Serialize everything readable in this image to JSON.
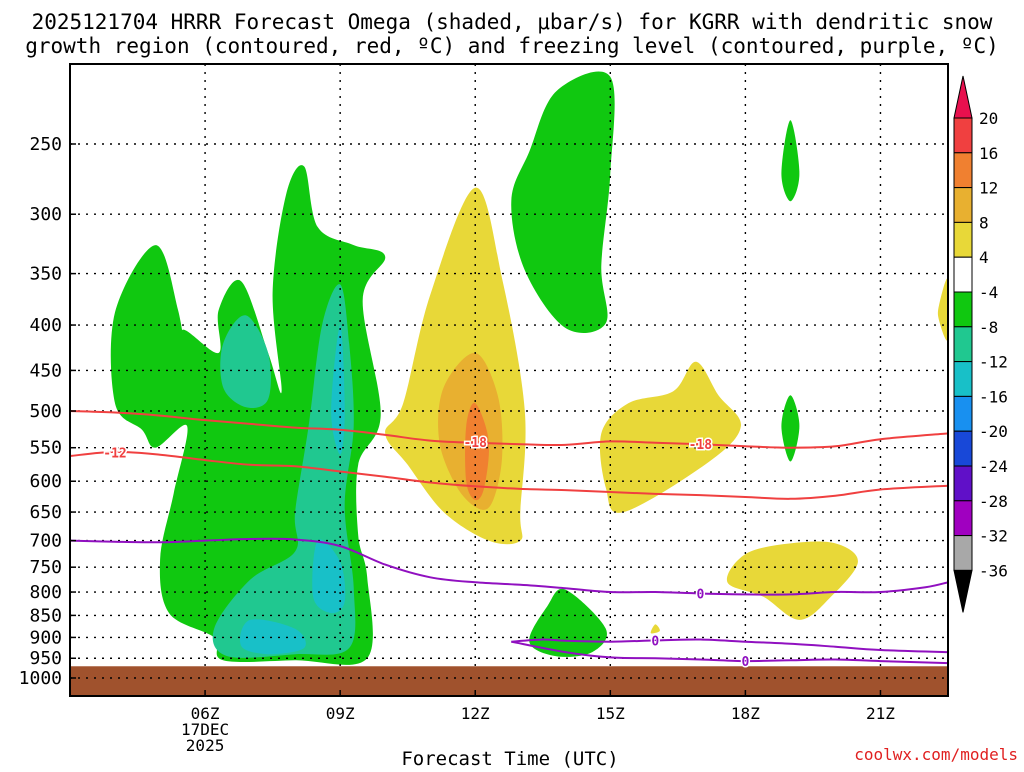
{
  "chart_data": {
    "type": "area",
    "title_line1": "2025121704 HRRR Forecast Omega (shaded, μbar/s) for KGRR with dendritic snow",
    "title_line2": "growth region (contoured, red, ºC) and freezing level (contoured, purple, ºC)",
    "xlabel": "Forecast Time (UTC)",
    "credit": "coolwx.com/models",
    "x_domain": [
      3.0,
      22.5
    ],
    "x_ticks": [
      {
        "hour": 6,
        "label": "06Z",
        "sub1": "17DEC",
        "sub2": "2025"
      },
      {
        "hour": 9,
        "label": "09Z"
      },
      {
        "hour": 12,
        "label": "12Z"
      },
      {
        "hour": 15,
        "label": "15Z"
      },
      {
        "hour": 18,
        "label": "18Z"
      },
      {
        "hour": 21,
        "label": "21Z"
      }
    ],
    "y_ticks": [
      250,
      300,
      350,
      400,
      450,
      500,
      550,
      600,
      650,
      700,
      750,
      800,
      850,
      900,
      950,
      1000
    ],
    "ground_level_hpa": 970,
    "colorbar": {
      "tick_labels": [
        "20",
        "16",
        "12",
        "8",
        "4",
        "-4",
        "-8",
        "-12",
        "-16",
        "-20",
        "-24",
        "-28",
        "-32",
        "-36"
      ],
      "colors": [
        "#e8104e",
        "#f04040",
        "#f08030",
        "#e8b030",
        "#e8d838",
        "#ffffff",
        "#10c810",
        "#20c890",
        "#18c0c8",
        "#1890f0",
        "#1848d8",
        "#6010c8",
        "#a000c0",
        "#a8a8a8",
        "#000000"
      ]
    },
    "omega_regions": [
      {
        "level": "-4 to -8",
        "color": "#10c810",
        "label": "left plume",
        "points": [
          [
            4.0,
            387
          ],
          [
            4.9,
            325
          ],
          [
            5.4,
            385
          ],
          [
            5.6,
            445
          ],
          [
            5.5,
            405
          ],
          [
            6.3,
            430
          ],
          [
            6.3,
            385
          ],
          [
            6.8,
            357
          ],
          [
            7.4,
            430
          ],
          [
            7.7,
            475
          ],
          [
            7.5,
            368
          ],
          [
            7.8,
            285
          ],
          [
            8.2,
            265
          ],
          [
            8.5,
            310
          ],
          [
            9.3,
            325
          ],
          [
            10.0,
            335
          ],
          [
            9.5,
            375
          ],
          [
            9.9,
            505
          ],
          [
            9.4,
            575
          ],
          [
            9.4,
            690
          ],
          [
            9.6,
            770
          ],
          [
            9.6,
            950
          ],
          [
            8.0,
            955
          ],
          [
            6.4,
            955
          ],
          [
            6.2,
            900
          ],
          [
            5.2,
            845
          ],
          [
            5.0,
            735
          ],
          [
            5.3,
            620
          ],
          [
            5.6,
            520
          ],
          [
            4.9,
            550
          ],
          [
            4.6,
            525
          ],
          [
            4.0,
            490
          ]
        ]
      },
      {
        "level": "-4 to -8",
        "color": "#10c810",
        "label": "upper blob",
        "points": [
          [
            15.0,
            210
          ],
          [
            15.0,
            270
          ],
          [
            14.8,
            343
          ],
          [
            14.9,
            398
          ],
          [
            14.0,
            403
          ],
          [
            13.1,
            347
          ],
          [
            12.8,
            290
          ],
          [
            13.2,
            255
          ],
          [
            13.8,
            218
          ]
        ]
      },
      {
        "level": "-4 to -8",
        "color": "#10c810",
        "label": "low cell",
        "points": [
          [
            14.0,
            795
          ],
          [
            14.9,
            880
          ],
          [
            14.6,
            935
          ],
          [
            13.8,
            945
          ],
          [
            13.2,
            910
          ],
          [
            13.6,
            830
          ]
        ]
      },
      {
        "level": "-4 to -8",
        "color": "#10c810",
        "label": "small blob 250",
        "points": [
          [
            19.0,
            235
          ],
          [
            19.2,
            270
          ],
          [
            19.0,
            290
          ],
          [
            18.8,
            270
          ]
        ]
      },
      {
        "level": "-4 to -8",
        "color": "#10c810",
        "label": "small blob 500",
        "points": [
          [
            19.0,
            480
          ],
          [
            19.2,
            520
          ],
          [
            19.0,
            570
          ],
          [
            18.8,
            520
          ]
        ]
      },
      {
        "level": "-8 to -12",
        "color": "#20c890",
        "label": "core 1",
        "points": [
          [
            6.9,
            390
          ],
          [
            7.4,
            430
          ],
          [
            7.4,
            485
          ],
          [
            6.9,
            495
          ],
          [
            6.4,
            470
          ],
          [
            6.4,
            420
          ]
        ]
      },
      {
        "level": "-8 to -12",
        "color": "#20c890",
        "label": "core 2",
        "points": [
          [
            9.0,
            360
          ],
          [
            9.2,
            420
          ],
          [
            9.3,
            520
          ],
          [
            9.1,
            640
          ],
          [
            9.3,
            790
          ],
          [
            9.2,
            925
          ],
          [
            8.0,
            940
          ],
          [
            6.5,
            945
          ],
          [
            6.2,
            880
          ],
          [
            7.0,
            775
          ],
          [
            8.0,
            720
          ],
          [
            8.0,
            650
          ],
          [
            8.3,
            520
          ],
          [
            8.6,
            400
          ]
        ]
      },
      {
        "level": "-12 to -16",
        "color": "#18c0c8",
        "label": "core 3",
        "points": [
          [
            9.0,
            400
          ],
          [
            9.1,
            500
          ],
          [
            9.0,
            560
          ],
          [
            8.8,
            500
          ]
        ]
      },
      {
        "level": "-12 to -16",
        "color": "#18c0c8",
        "label": "core 4",
        "points": [
          [
            8.5,
            700
          ],
          [
            9.0,
            740
          ],
          [
            9.1,
            820
          ],
          [
            8.8,
            845
          ],
          [
            8.4,
            810
          ]
        ]
      },
      {
        "level": "-12 to -16",
        "color": "#18c0c8",
        "label": "core 5",
        "points": [
          [
            7.0,
            860
          ],
          [
            8.0,
            880
          ],
          [
            8.2,
            925
          ],
          [
            7.4,
            940
          ],
          [
            6.8,
            920
          ]
        ]
      },
      {
        "level": "4 to 8",
        "color": "#e8d838",
        "label": "main positive plume",
        "points": [
          [
            12.0,
            280
          ],
          [
            12.6,
            355
          ],
          [
            13.1,
            500
          ],
          [
            13.0,
            650
          ],
          [
            13.0,
            700
          ],
          [
            12.3,
            700
          ],
          [
            11.3,
            650
          ],
          [
            10.5,
            575
          ],
          [
            10.0,
            530
          ],
          [
            10.4,
            490
          ],
          [
            11.0,
            370
          ]
        ]
      },
      {
        "level": "8 to 12",
        "color": "#e8b030",
        "label": "plume core",
        "points": [
          [
            12.0,
            430
          ],
          [
            12.5,
            480
          ],
          [
            12.6,
            560
          ],
          [
            12.4,
            630
          ],
          [
            12.1,
            645
          ],
          [
            11.6,
            610
          ],
          [
            11.2,
            540
          ],
          [
            11.3,
            470
          ]
        ]
      },
      {
        "level": "12 to 16",
        "color": "#f08030",
        "label": "plume max",
        "points": [
          [
            12.0,
            490
          ],
          [
            12.3,
            540
          ],
          [
            12.2,
            610
          ],
          [
            12.0,
            630
          ],
          [
            11.8,
            600
          ],
          [
            11.8,
            520
          ]
        ]
      },
      {
        "level": "4 to 8",
        "color": "#e8d838",
        "label": "mid cell",
        "points": [
          [
            16.9,
            440
          ],
          [
            17.4,
            480
          ],
          [
            17.9,
            520
          ],
          [
            17.2,
            570
          ],
          [
            15.3,
            650
          ],
          [
            14.9,
            610
          ],
          [
            14.8,
            530
          ],
          [
            15.4,
            490
          ],
          [
            16.4,
            475
          ]
        ]
      },
      {
        "level": "4 to 8",
        "color": "#e8d838",
        "label": "low cell 18Z",
        "points": [
          [
            18.0,
            725
          ],
          [
            19.0,
            705
          ],
          [
            20.0,
            705
          ],
          [
            20.5,
            740
          ],
          [
            19.9,
            810
          ],
          [
            19.2,
            860
          ],
          [
            18.4,
            810
          ],
          [
            17.6,
            780
          ]
        ]
      },
      {
        "level": "4 to 8",
        "color": "#e8d838",
        "label": "edge cell",
        "points": [
          [
            22.5,
            355
          ],
          [
            22.5,
            415
          ],
          [
            22.3,
            395
          ],
          [
            22.3,
            380
          ]
        ]
      },
      {
        "level": "4 to 8",
        "color": "#e8d838",
        "label": "small cell",
        "points": [
          [
            16.0,
            870
          ],
          [
            16.1,
            885
          ],
          [
            15.9,
            890
          ]
        ]
      }
    ],
    "dgz_contours": [
      {
        "label": "-12",
        "label_at": [
          4.0,
          557
        ],
        "points": [
          [
            3.0,
            562
          ],
          [
            4.0,
            556
          ],
          [
            5.0,
            560
          ],
          [
            6.0,
            568
          ],
          [
            7.0,
            575
          ],
          [
            8.0,
            577
          ],
          [
            9.0,
            585
          ],
          [
            10.0,
            593
          ],
          [
            11.0,
            602
          ],
          [
            12.0,
            608
          ],
          [
            13.0,
            612
          ],
          [
            14.0,
            614
          ],
          [
            15.0,
            617
          ],
          [
            16.0,
            620
          ],
          [
            17.0,
            622
          ],
          [
            18.0,
            625
          ],
          [
            19.0,
            628
          ],
          [
            20.0,
            623
          ],
          [
            21.0,
            613
          ],
          [
            22.5,
            607
          ]
        ]
      },
      {
        "label": "-18",
        "label_at": [
          12.0,
          542
        ],
        "points": [
          [
            3.0,
            500
          ],
          [
            4.0,
            502
          ],
          [
            5.0,
            506
          ],
          [
            6.0,
            512
          ],
          [
            7.0,
            517
          ],
          [
            8.0,
            522
          ],
          [
            9.0,
            525
          ],
          [
            10.0,
            532
          ],
          [
            11.0,
            540
          ],
          [
            12.0,
            543
          ],
          [
            13.0,
            545
          ],
          [
            14.0,
            546
          ],
          [
            15.0,
            541
          ],
          [
            16.0,
            543
          ],
          [
            17.0,
            545
          ],
          [
            18.0,
            548
          ],
          [
            19.0,
            550
          ],
          [
            20.0,
            548
          ],
          [
            21.0,
            538
          ],
          [
            22.5,
            530
          ]
        ]
      },
      {
        "label": "-18",
        "label_at": [
          17.0,
          545
        ],
        "points": []
      }
    ],
    "freezing_contours": [
      {
        "label": "0",
        "label_at": [
          17.0,
          803
        ],
        "points": [
          [
            3.0,
            700
          ],
          [
            4.0,
            702
          ],
          [
            5.0,
            703
          ],
          [
            6.0,
            700
          ],
          [
            7.0,
            697
          ],
          [
            8.0,
            698
          ],
          [
            9.0,
            710
          ],
          [
            10.0,
            745
          ],
          [
            11.0,
            770
          ],
          [
            12.0,
            780
          ],
          [
            13.0,
            785
          ],
          [
            14.0,
            792
          ],
          [
            15.0,
            800
          ],
          [
            16.0,
            800
          ],
          [
            17.0,
            803
          ],
          [
            18.0,
            805
          ],
          [
            19.0,
            805
          ],
          [
            20.0,
            800
          ],
          [
            21.0,
            800
          ],
          [
            22.0,
            790
          ],
          [
            22.5,
            780
          ]
        ]
      },
      {
        "label": "0",
        "label_at": [
          16.0,
          907
        ],
        "points": [
          [
            12.8,
            910
          ],
          [
            13.5,
            905
          ],
          [
            14.0,
            908
          ],
          [
            15.0,
            910
          ],
          [
            16.0,
            907
          ],
          [
            17.0,
            905
          ],
          [
            18.0,
            910
          ],
          [
            19.0,
            915
          ],
          [
            20.0,
            922
          ],
          [
            21.0,
            930
          ],
          [
            22.5,
            935
          ]
        ]
      },
      {
        "label": "0",
        "label_at": [
          18.0,
          957
        ],
        "points": [
          [
            12.8,
            910
          ],
          [
            14.0,
            935
          ],
          [
            15.0,
            948
          ],
          [
            16.0,
            950
          ],
          [
            17.0,
            953
          ],
          [
            18.0,
            957
          ],
          [
            19.0,
            955
          ],
          [
            20.0,
            953
          ],
          [
            21.0,
            957
          ],
          [
            22.5,
            962
          ]
        ]
      }
    ]
  }
}
